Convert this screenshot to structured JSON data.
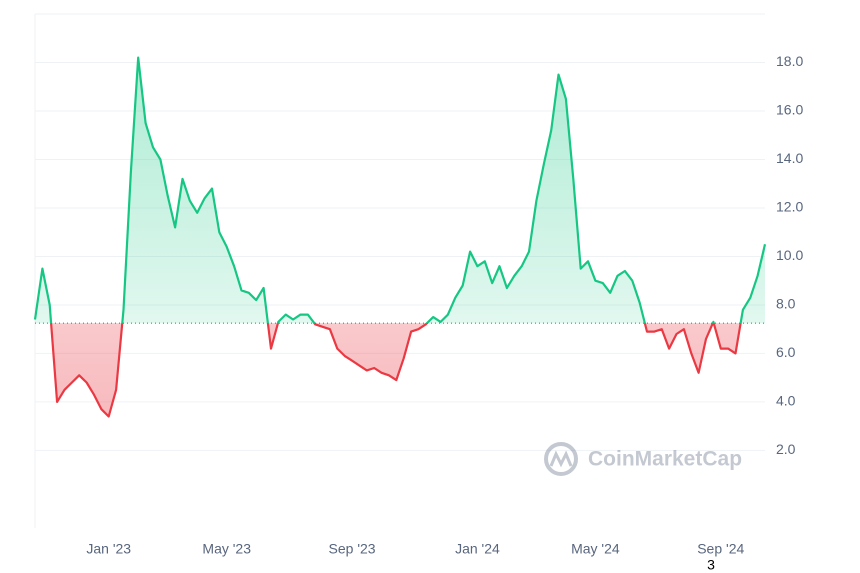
{
  "chart_data": {
    "type": "line",
    "categories": [
      null,
      null,
      null,
      null,
      null,
      null,
      null,
      null,
      null,
      null,
      "Jan '23",
      null,
      null,
      null,
      null,
      null,
      null,
      null,
      null,
      null,
      null,
      null,
      null,
      null,
      null,
      null,
      "May '23",
      null,
      null,
      null,
      null,
      null,
      null,
      null,
      null,
      null,
      null,
      null,
      null,
      null,
      null,
      null,
      null,
      "Sep '23",
      null,
      null,
      null,
      null,
      null,
      null,
      null,
      null,
      null,
      null,
      null,
      null,
      null,
      null,
      null,
      null,
      "Jan '24",
      null,
      null,
      null,
      null,
      null,
      null,
      null,
      null,
      null,
      null,
      null,
      null,
      null,
      null,
      null,
      "May '24",
      null,
      null,
      null,
      null,
      null,
      null,
      null,
      null,
      null,
      null,
      null,
      null,
      null,
      null,
      null,
      null,
      "Sep '24",
      null,
      null,
      null,
      null,
      null,
      null
    ],
    "series": [
      {
        "values": [
          7.4,
          9.5,
          8.0,
          4.0,
          4.5,
          4.8,
          5.1,
          4.8,
          4.3,
          3.7,
          3.4,
          4.5,
          7.8,
          13.5,
          18.2,
          15.5,
          14.5,
          14.0,
          12.5,
          11.2,
          13.2,
          12.3,
          11.8,
          12.4,
          12.8,
          11.0,
          10.4,
          9.6,
          8.6,
          8.5,
          8.2,
          8.7,
          6.2,
          7.3,
          7.6,
          7.4,
          7.6,
          7.6,
          7.2,
          7.1,
          7.0,
          6.2,
          5.9,
          5.7,
          5.5,
          5.3,
          5.4,
          5.2,
          5.1,
          4.9,
          5.8,
          6.9,
          7.0,
          7.2,
          7.5,
          7.3,
          7.6,
          8.3,
          8.8,
          10.2,
          9.6,
          9.8,
          8.9,
          9.6,
          8.7,
          9.2,
          9.6,
          10.2,
          12.3,
          13.8,
          15.2,
          17.5,
          16.5,
          13.2,
          9.5,
          9.8,
          9.0,
          8.9,
          8.5,
          9.2,
          9.4,
          9.0,
          8.1,
          6.9,
          6.9,
          7.0,
          6.2,
          6.8,
          7.0,
          6.0,
          5.2,
          6.6,
          7.3,
          6.2,
          6.2,
          6.0,
          7.8,
          8.3,
          9.2,
          10.5
        ],
        "color_up": "#16c784",
        "color_down": "#ea3943"
      }
    ],
    "baseline": 7.25,
    "ylim": [
      -1.2,
      20
    ],
    "yticks": [
      {
        "value": 2,
        "label": "2.0"
      },
      {
        "value": 4,
        "label": "4.0"
      },
      {
        "value": 6,
        "label": "6.0"
      },
      {
        "value": 8,
        "label": "8.0"
      },
      {
        "value": 10,
        "label": "10.0"
      },
      {
        "value": 12,
        "label": "12.0"
      },
      {
        "value": 14,
        "label": "14.0"
      },
      {
        "value": 16,
        "label": "16.0"
      },
      {
        "value": 18,
        "label": "18.0"
      }
    ],
    "grid": true
  },
  "watermark": "CoinMarketCap",
  "page_label": "3"
}
